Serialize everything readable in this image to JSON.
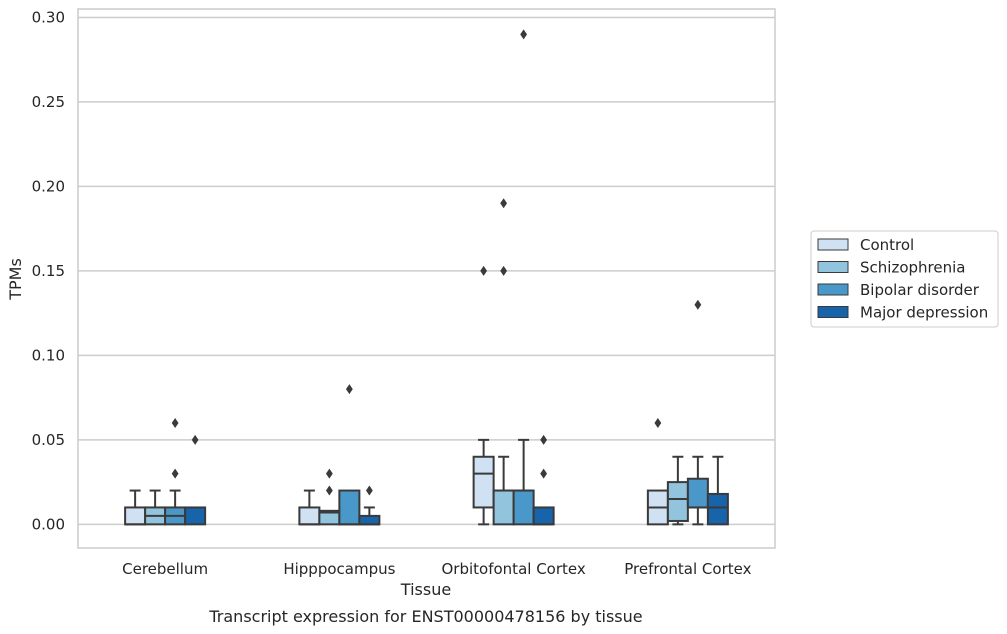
{
  "chart_data": {
    "type": "box",
    "title": "",
    "caption": "Transcript expression for ENST00000478156 by tissue",
    "xlabel": "Tissue",
    "ylabel": "TPMs",
    "ylim": [
      -0.014,
      0.305
    ],
    "yticks": [
      "0.00",
      "0.05",
      "0.10",
      "0.15",
      "0.20",
      "0.25",
      "0.30"
    ],
    "ytick_values": [
      0,
      0.05,
      0.1,
      0.15,
      0.2,
      0.25,
      0.3
    ],
    "grid": "horizontal",
    "legend_placement": "right",
    "categories": [
      "Cerebellum",
      "Hipppocampus",
      "Orbitofontal Cortex",
      "Prefrontal Cortex"
    ],
    "series": [
      {
        "name": "Control",
        "color": "#cfe1f2",
        "boxes": [
          {
            "q1": 0,
            "median": 0,
            "q3": 0.01,
            "whislo": 0,
            "whishi": 0.02,
            "fliers": []
          },
          {
            "q1": 0,
            "median": 0,
            "q3": 0.01,
            "whislo": 0,
            "whishi": 0.02,
            "fliers": []
          },
          {
            "q1": 0.01,
            "median": 0.03,
            "q3": 0.04,
            "whislo": 0,
            "whishi": 0.05,
            "fliers": [
              0.15
            ]
          },
          {
            "q1": 0,
            "median": 0.01,
            "q3": 0.02,
            "whislo": 0,
            "whishi": 0.02,
            "fliers": [
              0.06
            ]
          }
        ]
      },
      {
        "name": "Schizophrenia",
        "color": "#93c4de",
        "boxes": [
          {
            "q1": 0,
            "median": 0.005,
            "q3": 0.01,
            "whislo": 0,
            "whishi": 0.02,
            "fliers": []
          },
          {
            "q1": 0,
            "median": 0.007,
            "q3": 0.008,
            "whislo": 0,
            "whishi": 0.008,
            "fliers": [
              0.02,
              0.03
            ]
          },
          {
            "q1": 0,
            "median": 0.02,
            "q3": 0.02,
            "whislo": 0,
            "whishi": 0.04,
            "fliers": [
              0.15,
              0.19
            ]
          },
          {
            "q1": 0.002,
            "median": 0.015,
            "q3": 0.025,
            "whislo": 0,
            "whishi": 0.04,
            "fliers": []
          }
        ]
      },
      {
        "name": "Bipolar disorder",
        "color": "#4a98c9",
        "boxes": [
          {
            "q1": 0,
            "median": 0.005,
            "q3": 0.01,
            "whislo": 0,
            "whishi": 0.02,
            "fliers": [
              0.03,
              0.06
            ]
          },
          {
            "q1": 0,
            "median": 0,
            "q3": 0.02,
            "whislo": 0,
            "whishi": 0.02,
            "fliers": [
              0.08
            ]
          },
          {
            "q1": 0,
            "median": 0.02,
            "q3": 0.02,
            "whislo": 0,
            "whishi": 0.05,
            "fliers": [
              0.29
            ]
          },
          {
            "q1": 0.01,
            "median": 0.01,
            "q3": 0.027,
            "whislo": 0,
            "whishi": 0.04,
            "fliers": [
              0.13
            ]
          }
        ]
      },
      {
        "name": "Major depression",
        "color": "#1764ab",
        "boxes": [
          {
            "q1": 0,
            "median": 0.01,
            "q3": 0.01,
            "whislo": 0,
            "whishi": 0.01,
            "fliers": [
              0.05
            ]
          },
          {
            "q1": 0,
            "median": 0,
            "q3": 0.005,
            "whislo": 0,
            "whishi": 0.01,
            "fliers": [
              0.02
            ]
          },
          {
            "q1": 0,
            "median": 0,
            "q3": 0.01,
            "whislo": 0,
            "whishi": 0.01,
            "fliers": [
              0.03,
              0.05
            ]
          },
          {
            "q1": 0,
            "median": 0.01,
            "q3": 0.018,
            "whislo": 0,
            "whishi": 0.04,
            "fliers": []
          }
        ]
      }
    ],
    "colors": {
      "grid": "#cccccc",
      "spine": "#cccccc",
      "line": "#3a3a3a"
    }
  }
}
